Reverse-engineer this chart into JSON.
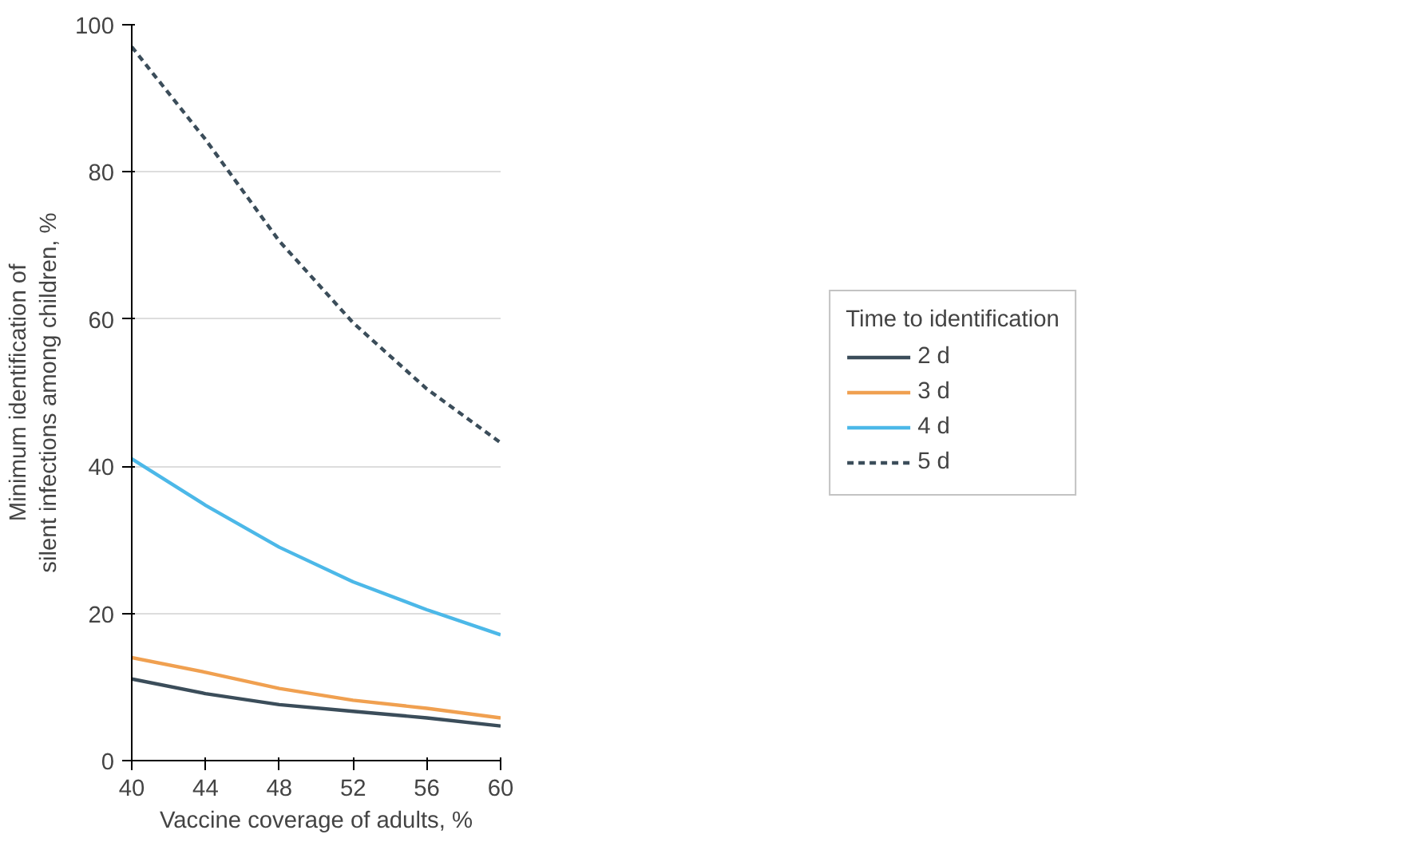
{
  "chart_data": {
    "type": "line",
    "xlabel": "Vaccine coverage of adults, %",
    "ylabel": "Minimum identification of\nsilent infections among children, %",
    "legend_title": "Time to identification",
    "x": [
      40,
      44,
      48,
      52,
      56,
      60
    ],
    "series": [
      {
        "name": "2 d",
        "color": "#3b4d5a",
        "values": [
          11.1,
          9.1,
          7.6,
          6.7,
          5.8,
          4.7
        ]
      },
      {
        "name": "3 d",
        "color": "#f0a050",
        "values": [
          14,
          12,
          9.8,
          8.2,
          7.1,
          5.8
        ]
      },
      {
        "name": "4 d",
        "color": "#4cb8e8",
        "values": [
          41,
          34.7,
          29,
          24.3,
          20.5,
          17.1
        ]
      },
      {
        "name": "5 d",
        "color": "#3b4d5a",
        "line_style": "dashed",
        "values": [
          97,
          84.4,
          70.6,
          59.5,
          50.5,
          43.2
        ]
      }
    ],
    "xlim": [
      40,
      60
    ],
    "ylim": [
      0,
      100
    ],
    "xticks": [
      40,
      44,
      48,
      52,
      56,
      60
    ],
    "yticks": [
      0,
      20,
      40,
      60,
      80,
      100
    ],
    "grid": "y",
    "legend": "right",
    "marker": "none"
  }
}
